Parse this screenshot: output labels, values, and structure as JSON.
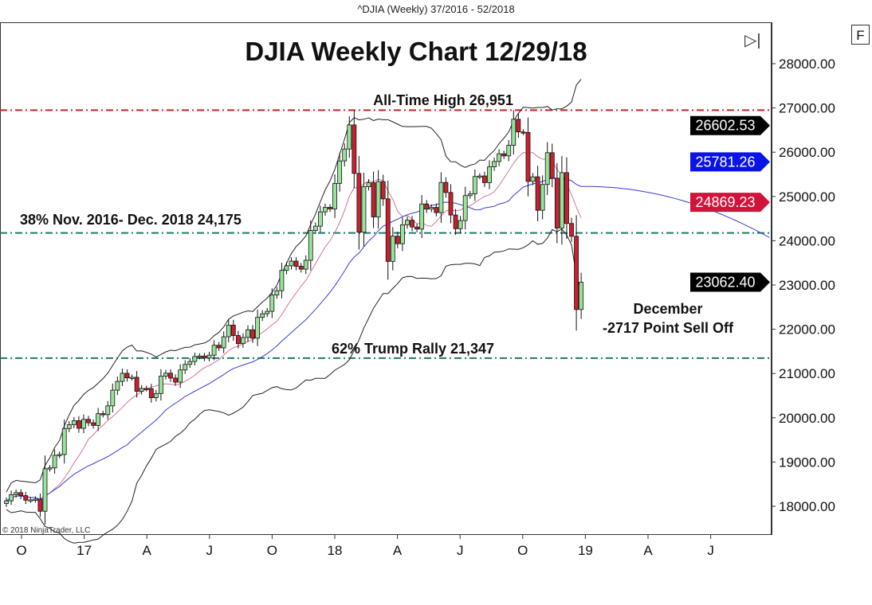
{
  "window_title": "^DJIA (Weekly)  37/2016 - 52/2018",
  "copyright": "© 2018 NinjaTrader, LLC",
  "buttons": {
    "scroll_end": "▷|",
    "fit": "F"
  },
  "chart_data": {
    "type": "candlestick",
    "title": "DJIA Weekly Chart 12/29/18",
    "ylim": [
      17200,
      28700
    ],
    "y_ticks": [
      "28000.00",
      "27000.00",
      "26000.00",
      "25000.00",
      "24000.00",
      "23000.00",
      "22000.00",
      "21000.00",
      "20000.00",
      "19000.00",
      "18000.00"
    ],
    "x_ticks": [
      "O",
      "17",
      "A",
      "J",
      "O",
      "18",
      "A",
      "J",
      "O",
      "19",
      "A",
      "J"
    ],
    "x_range": [
      "2016-W37",
      "2019-W38"
    ],
    "grid": false,
    "colors": {
      "up": "#98e39a",
      "down": "#cc1f2f",
      "upper_band": "#222222",
      "red_ma": "#d9738a",
      "blue_ma": "#3a3ad6",
      "ath_line": "#cc1f1f",
      "fib_line": "#1f7a66"
    },
    "weeks_start": "2016-W37",
    "close": [
      18124,
      18261,
      18308,
      18240,
      18138,
      18146,
      18161,
      17888,
      18847,
      18868,
      19152,
      19171,
      19757,
      19843,
      19934,
      19763,
      19964,
      19886,
      19827,
      20094,
      20071,
      20269,
      20624,
      20822,
      21005,
      20903,
      20915,
      20597,
      20663,
      20656,
      20453,
      20548,
      20941,
      21007,
      20897,
      20805,
      21080,
      21206,
      21272,
      21384,
      21395,
      21350,
      21414,
      21638,
      21580,
      21830,
      22093,
      21858,
      21675,
      21814,
      21988,
      21798,
      22268,
      22350,
      22405,
      22773,
      22871,
      23329,
      23434,
      23539,
      23422,
      23358,
      23558,
      24231,
      24329,
      24652,
      24754,
      24719,
      25296,
      25803,
      26072,
      26617,
      25521,
      24191,
      25219,
      25310,
      24538,
      25336,
      24946,
      23533,
      24103,
      23933,
      24360,
      24463,
      24311,
      24263,
      24831,
      24715,
      24753,
      24635,
      25317,
      25090,
      24581,
      24271,
      24456,
      25019,
      25058,
      25451,
      25463,
      25313,
      25669,
      25790,
      25965,
      25917,
      26155,
      26744,
      26458,
      26447,
      25340,
      25444,
      24688,
      25271,
      25989,
      25413,
      24286,
      25538,
      24389,
      24101,
      22445,
      23062
    ],
    "price_tags": [
      {
        "value": "26602.53",
        "color": "#000000"
      },
      {
        "value": "25781.26",
        "color": "#0a14e6"
      },
      {
        "value": "24869.23",
        "color": "#d0143c"
      },
      {
        "value": "23062.40",
        "color": "#000000"
      }
    ],
    "horizontal_levels": [
      {
        "price": 26951,
        "label": "All-Time High 26,951",
        "style": "ath"
      },
      {
        "price": 24175,
        "label": "38% Nov. 2016- Dec. 2018 24,175",
        "style": "fib"
      },
      {
        "price": 21347,
        "label": "62% Trump Rally 21,347",
        "style": "fib"
      }
    ],
    "annotation": [
      "December",
      "-2717 Point Sell Off"
    ]
  }
}
